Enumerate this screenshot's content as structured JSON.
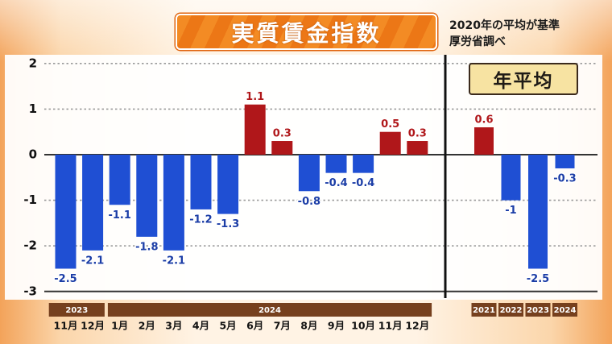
{
  "colors": {
    "positive": "#b0171a",
    "negative": "#1f4fd3",
    "positive_label": "#b0171a",
    "negative_label": "#1b3da6",
    "year_band": "#76401e"
  },
  "chart_data": {
    "type": "bar",
    "title": "実質賃金指数",
    "annotations": [
      "2020年の平均が基準",
      "厚労省調べ"
    ],
    "ylim": [
      -3,
      2
    ],
    "yticks": [
      2,
      1,
      0,
      -1,
      -2,
      -3
    ],
    "grid": true,
    "monthly": [
      {
        "year": "2023",
        "points": [
          {
            "x": "11月",
            "value": -2.5
          },
          {
            "x": "12月",
            "value": -2.1
          }
        ]
      },
      {
        "year": "2024",
        "points": [
          {
            "x": "1月",
            "value": -1.1
          },
          {
            "x": "2月",
            "value": -1.8
          },
          {
            "x": "3月",
            "value": -2.1
          },
          {
            "x": "4月",
            "value": -1.2
          },
          {
            "x": "5月",
            "value": -1.3
          },
          {
            "x": "6月",
            "value": 1.1
          },
          {
            "x": "7月",
            "value": 0.3
          },
          {
            "x": "8月",
            "value": -0.8
          },
          {
            "x": "9月",
            "value": -0.4
          },
          {
            "x": "10月",
            "value": -0.4
          },
          {
            "x": "11月",
            "value": 0.5
          },
          {
            "x": "12月",
            "value": 0.3
          }
        ]
      }
    ],
    "annual": {
      "label": "年平均",
      "points": [
        {
          "x": "2021",
          "value": 0.6
        },
        {
          "x": "2022",
          "value": -1
        },
        {
          "x": "2023",
          "value": -2.5
        },
        {
          "x": "2024",
          "value": -0.3
        }
      ]
    }
  }
}
